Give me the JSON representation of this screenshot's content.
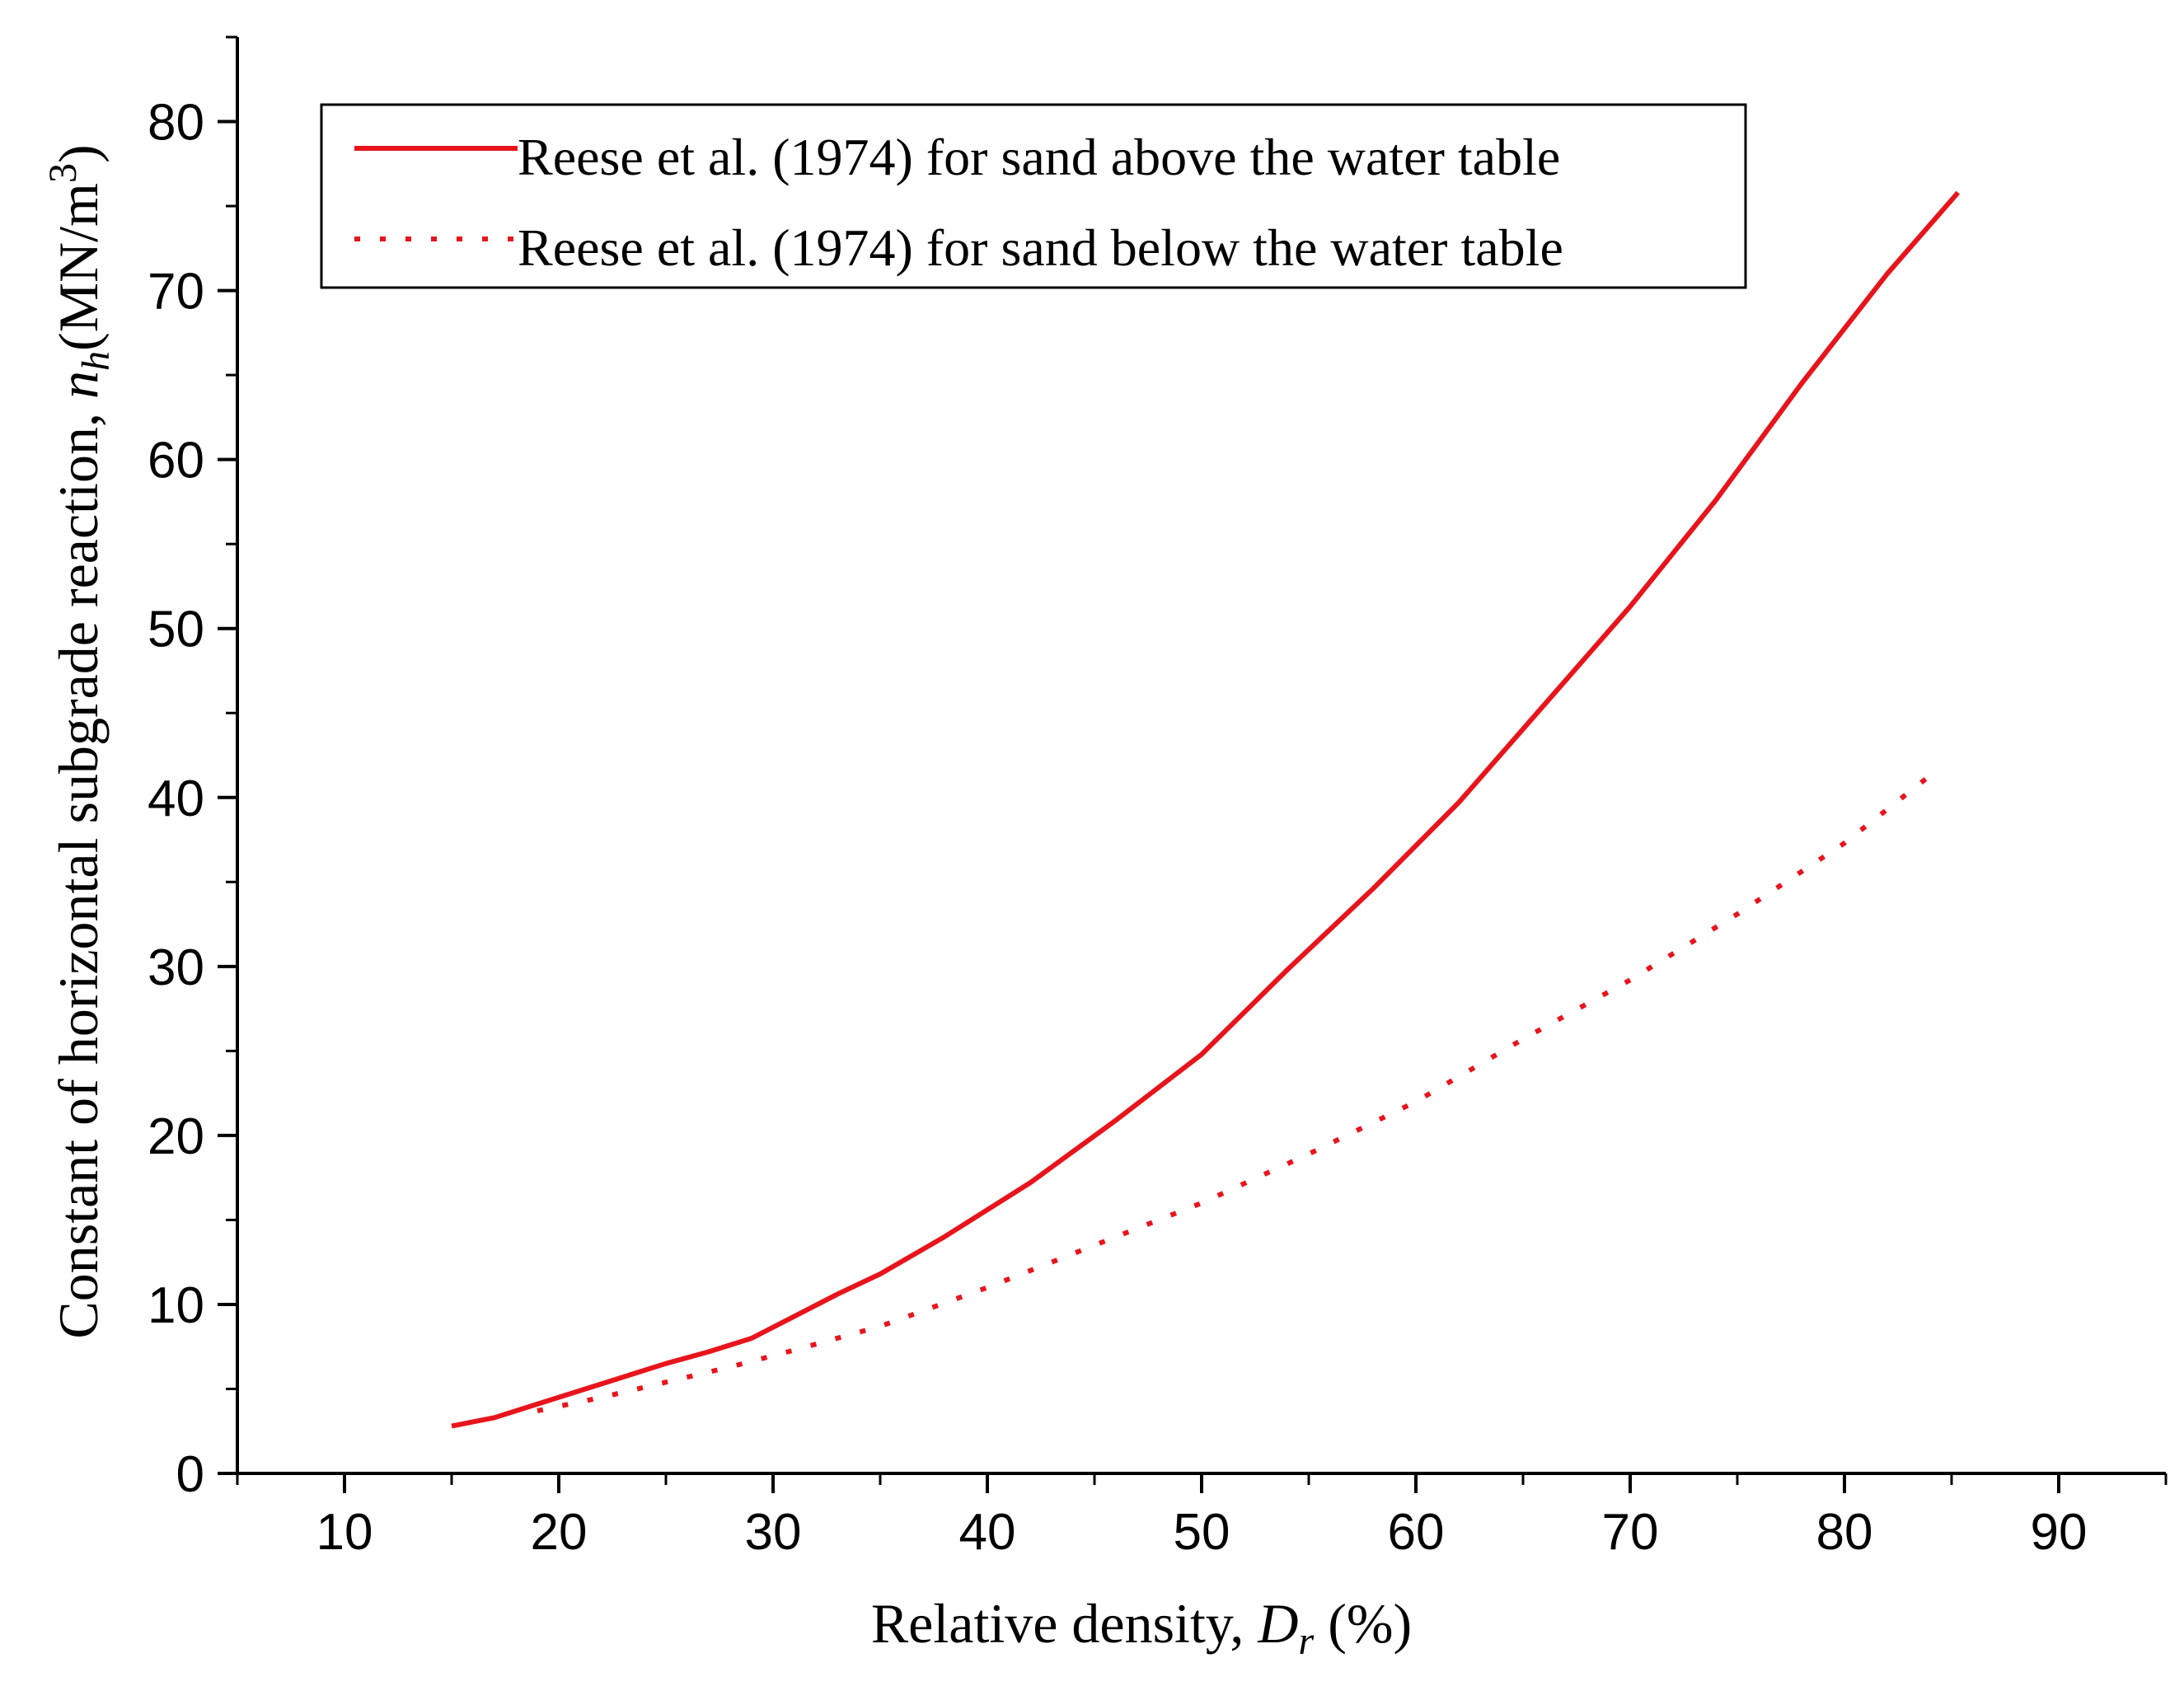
{
  "chart_data": {
    "type": "line",
    "title": "",
    "xlabel": "Relative density, ",
    "xlabel_var": "D",
    "xlabel_sub": "r",
    "xlabel_unit": " (%)",
    "ylabel": "Constant of horizontal subgrade reaction, ",
    "ylabel_var": "n",
    "ylabel_sub": "h",
    "ylabel_unit": "(MN/m",
    "ylabel_sup": "3",
    "ylabel_close": ")",
    "xlim": [
      5,
      95
    ],
    "ylim": [
      0,
      85
    ],
    "x_ticks": [
      10,
      20,
      30,
      40,
      50,
      60,
      70,
      80,
      90
    ],
    "x_tick_labels": [
      "10",
      "20",
      "30",
      "40",
      "50",
      "60",
      "70",
      "80",
      "90"
    ],
    "y_ticks": [
      0,
      10,
      20,
      30,
      40,
      50,
      60,
      70,
      80
    ],
    "y_tick_labels": [
      "0",
      "10",
      "20",
      "30",
      "40",
      "50",
      "60",
      "70",
      "80"
    ],
    "legend_position": "top-left",
    "series": [
      {
        "name": "Reese et al. (1974) for sand above the water table",
        "style": "solid",
        "color": "#e8141c",
        "x": [
          15,
          17,
          19,
          21,
          23,
          25,
          27,
          29,
          31,
          33,
          35,
          38,
          42,
          46,
          50,
          54,
          58,
          62,
          66,
          70,
          74,
          78,
          82,
          85.3
        ],
        "y": [
          2.8,
          3.3,
          4.1,
          4.9,
          5.7,
          6.5,
          7.2,
          8.0,
          9.3,
          10.6,
          11.8,
          14.0,
          17.2,
          20.9,
          24.8,
          29.8,
          34.6,
          39.7,
          45.5,
          51.3,
          57.6,
          64.5,
          71.0,
          75.8
        ]
      },
      {
        "name": "Reese et al. (1974) for sand below the water table",
        "style": "dotted",
        "color": "#e8141c",
        "x": [
          19,
          22,
          25,
          28,
          31,
          35,
          40,
          45,
          50,
          55,
          60,
          65,
          70,
          75,
          80,
          84
        ],
        "y": [
          3.7,
          4.5,
          5.4,
          6.3,
          7.3,
          8.7,
          11.0,
          13.5,
          16.0,
          18.9,
          22.0,
          25.7,
          29.2,
          33.1,
          37.3,
          41.3
        ]
      }
    ]
  }
}
